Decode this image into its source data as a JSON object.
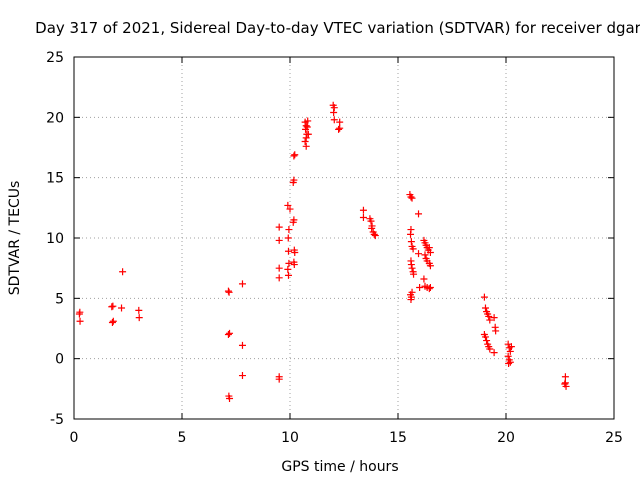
{
  "chart_data": {
    "type": "scatter",
    "title": "Day 317 of 2021, Sidereal Day-to-day VTEC variation (SDTVAR) for receiver dgar",
    "xlabel": "GPS time / hours",
    "ylabel": "SDTVAR / TECUs",
    "xlim": [
      0,
      25
    ],
    "ylim": [
      -5,
      25
    ],
    "xticks": [
      0,
      5,
      10,
      15,
      20,
      25
    ],
    "yticks": [
      -5,
      0,
      5,
      10,
      15,
      20,
      25
    ],
    "grid": true,
    "marker": "+",
    "color": "#ff0000",
    "series": [
      {
        "name": "SDTVAR",
        "points": [
          [
            0.25,
            3.7
          ],
          [
            0.27,
            3.85
          ],
          [
            0.28,
            3.1
          ],
          [
            1.75,
            4.3
          ],
          [
            1.8,
            4.35
          ],
          [
            1.78,
            3.0
          ],
          [
            1.82,
            3.1
          ],
          [
            2.25,
            7.2
          ],
          [
            2.2,
            4.2
          ],
          [
            3.0,
            4.0
          ],
          [
            3.02,
            3.4
          ],
          [
            7.15,
            5.6
          ],
          [
            7.18,
            5.5
          ],
          [
            7.15,
            2.0
          ],
          [
            7.2,
            2.1
          ],
          [
            7.17,
            -3.1
          ],
          [
            7.2,
            -3.3
          ],
          [
            7.8,
            6.2
          ],
          [
            7.8,
            1.1
          ],
          [
            7.8,
            -1.4
          ],
          [
            9.5,
            10.9
          ],
          [
            9.5,
            9.8
          ],
          [
            9.5,
            7.5
          ],
          [
            9.5,
            6.7
          ],
          [
            9.5,
            -1.5
          ],
          [
            9.5,
            -1.7
          ],
          [
            9.9,
            12.7
          ],
          [
            10.0,
            12.4
          ],
          [
            9.95,
            10.7
          ],
          [
            9.92,
            10.0
          ],
          [
            9.93,
            8.9
          ],
          [
            9.95,
            7.9
          ],
          [
            9.9,
            7.4
          ],
          [
            9.93,
            6.9
          ],
          [
            10.15,
            11.3
          ],
          [
            10.18,
            11.5
          ],
          [
            10.2,
            9.0
          ],
          [
            10.22,
            8.8
          ],
          [
            10.18,
            8.0
          ],
          [
            10.2,
            7.8
          ],
          [
            10.15,
            14.6
          ],
          [
            10.18,
            14.8
          ],
          [
            10.18,
            16.8
          ],
          [
            10.22,
            16.9
          ],
          [
            10.7,
            19.6
          ],
          [
            10.75,
            19.3
          ],
          [
            10.72,
            19.0
          ],
          [
            10.78,
            18.6
          ],
          [
            10.75,
            18.3
          ],
          [
            10.7,
            18.0
          ],
          [
            10.75,
            17.6
          ],
          [
            10.82,
            19.7
          ],
          [
            10.8,
            19.2
          ],
          [
            10.85,
            18.6
          ],
          [
            12.0,
            21.0
          ],
          [
            12.05,
            20.8
          ],
          [
            12.02,
            20.4
          ],
          [
            12.05,
            19.8
          ],
          [
            12.3,
            19.6
          ],
          [
            12.3,
            19.1
          ],
          [
            12.25,
            19.0
          ],
          [
            13.4,
            12.3
          ],
          [
            13.4,
            11.7
          ],
          [
            13.7,
            11.6
          ],
          [
            13.75,
            11.4
          ],
          [
            13.8,
            11.0
          ],
          [
            13.78,
            10.8
          ],
          [
            13.85,
            10.5
          ],
          [
            13.9,
            10.3
          ],
          [
            13.95,
            10.2
          ],
          [
            15.55,
            13.6
          ],
          [
            15.6,
            13.4
          ],
          [
            15.65,
            13.3
          ],
          [
            15.6,
            10.7
          ],
          [
            15.58,
            10.3
          ],
          [
            15.62,
            9.7
          ],
          [
            15.65,
            9.3
          ],
          [
            15.7,
            9.1
          ],
          [
            15.6,
            8.1
          ],
          [
            15.62,
            7.8
          ],
          [
            15.65,
            7.5
          ],
          [
            15.7,
            7.2
          ],
          [
            15.72,
            7.0
          ],
          [
            15.58,
            5.3
          ],
          [
            15.62,
            5.1
          ],
          [
            15.6,
            4.9
          ],
          [
            15.65,
            5.5
          ],
          [
            15.95,
            12.0
          ],
          [
            15.95,
            8.7
          ],
          [
            16.0,
            5.9
          ],
          [
            16.2,
            9.8
          ],
          [
            16.25,
            9.6
          ],
          [
            16.3,
            9.4
          ],
          [
            16.35,
            9.2
          ],
          [
            16.4,
            9.0
          ],
          [
            16.45,
            9.2
          ],
          [
            16.5,
            8.8
          ],
          [
            16.25,
            8.6
          ],
          [
            16.3,
            8.3
          ],
          [
            16.35,
            8.1
          ],
          [
            16.45,
            7.9
          ],
          [
            16.5,
            7.7
          ],
          [
            16.2,
            6.6
          ],
          [
            16.25,
            6.0
          ],
          [
            16.35,
            5.9
          ],
          [
            16.45,
            5.8
          ],
          [
            16.5,
            5.9
          ],
          [
            19.0,
            5.1
          ],
          [
            19.05,
            4.2
          ],
          [
            19.1,
            3.9
          ],
          [
            19.15,
            3.7
          ],
          [
            19.2,
            3.5
          ],
          [
            19.25,
            3.2
          ],
          [
            19.0,
            2.0
          ],
          [
            19.05,
            1.8
          ],
          [
            19.1,
            1.5
          ],
          [
            19.15,
            1.2
          ],
          [
            19.2,
            1.0
          ],
          [
            19.25,
            0.8
          ],
          [
            19.45,
            3.4
          ],
          [
            19.5,
            2.6
          ],
          [
            19.52,
            2.3
          ],
          [
            19.45,
            0.5
          ],
          [
            20.1,
            1.2
          ],
          [
            20.15,
            0.9
          ],
          [
            20.2,
            0.6
          ],
          [
            20.1,
            0.2
          ],
          [
            20.15,
            -0.1
          ],
          [
            20.2,
            -0.3
          ],
          [
            20.25,
            1.0
          ],
          [
            20.12,
            -0.4
          ],
          [
            22.75,
            -1.5
          ],
          [
            22.75,
            -2.0
          ],
          [
            22.78,
            -2.3
          ],
          [
            22.72,
            -2.1
          ]
        ]
      }
    ]
  }
}
